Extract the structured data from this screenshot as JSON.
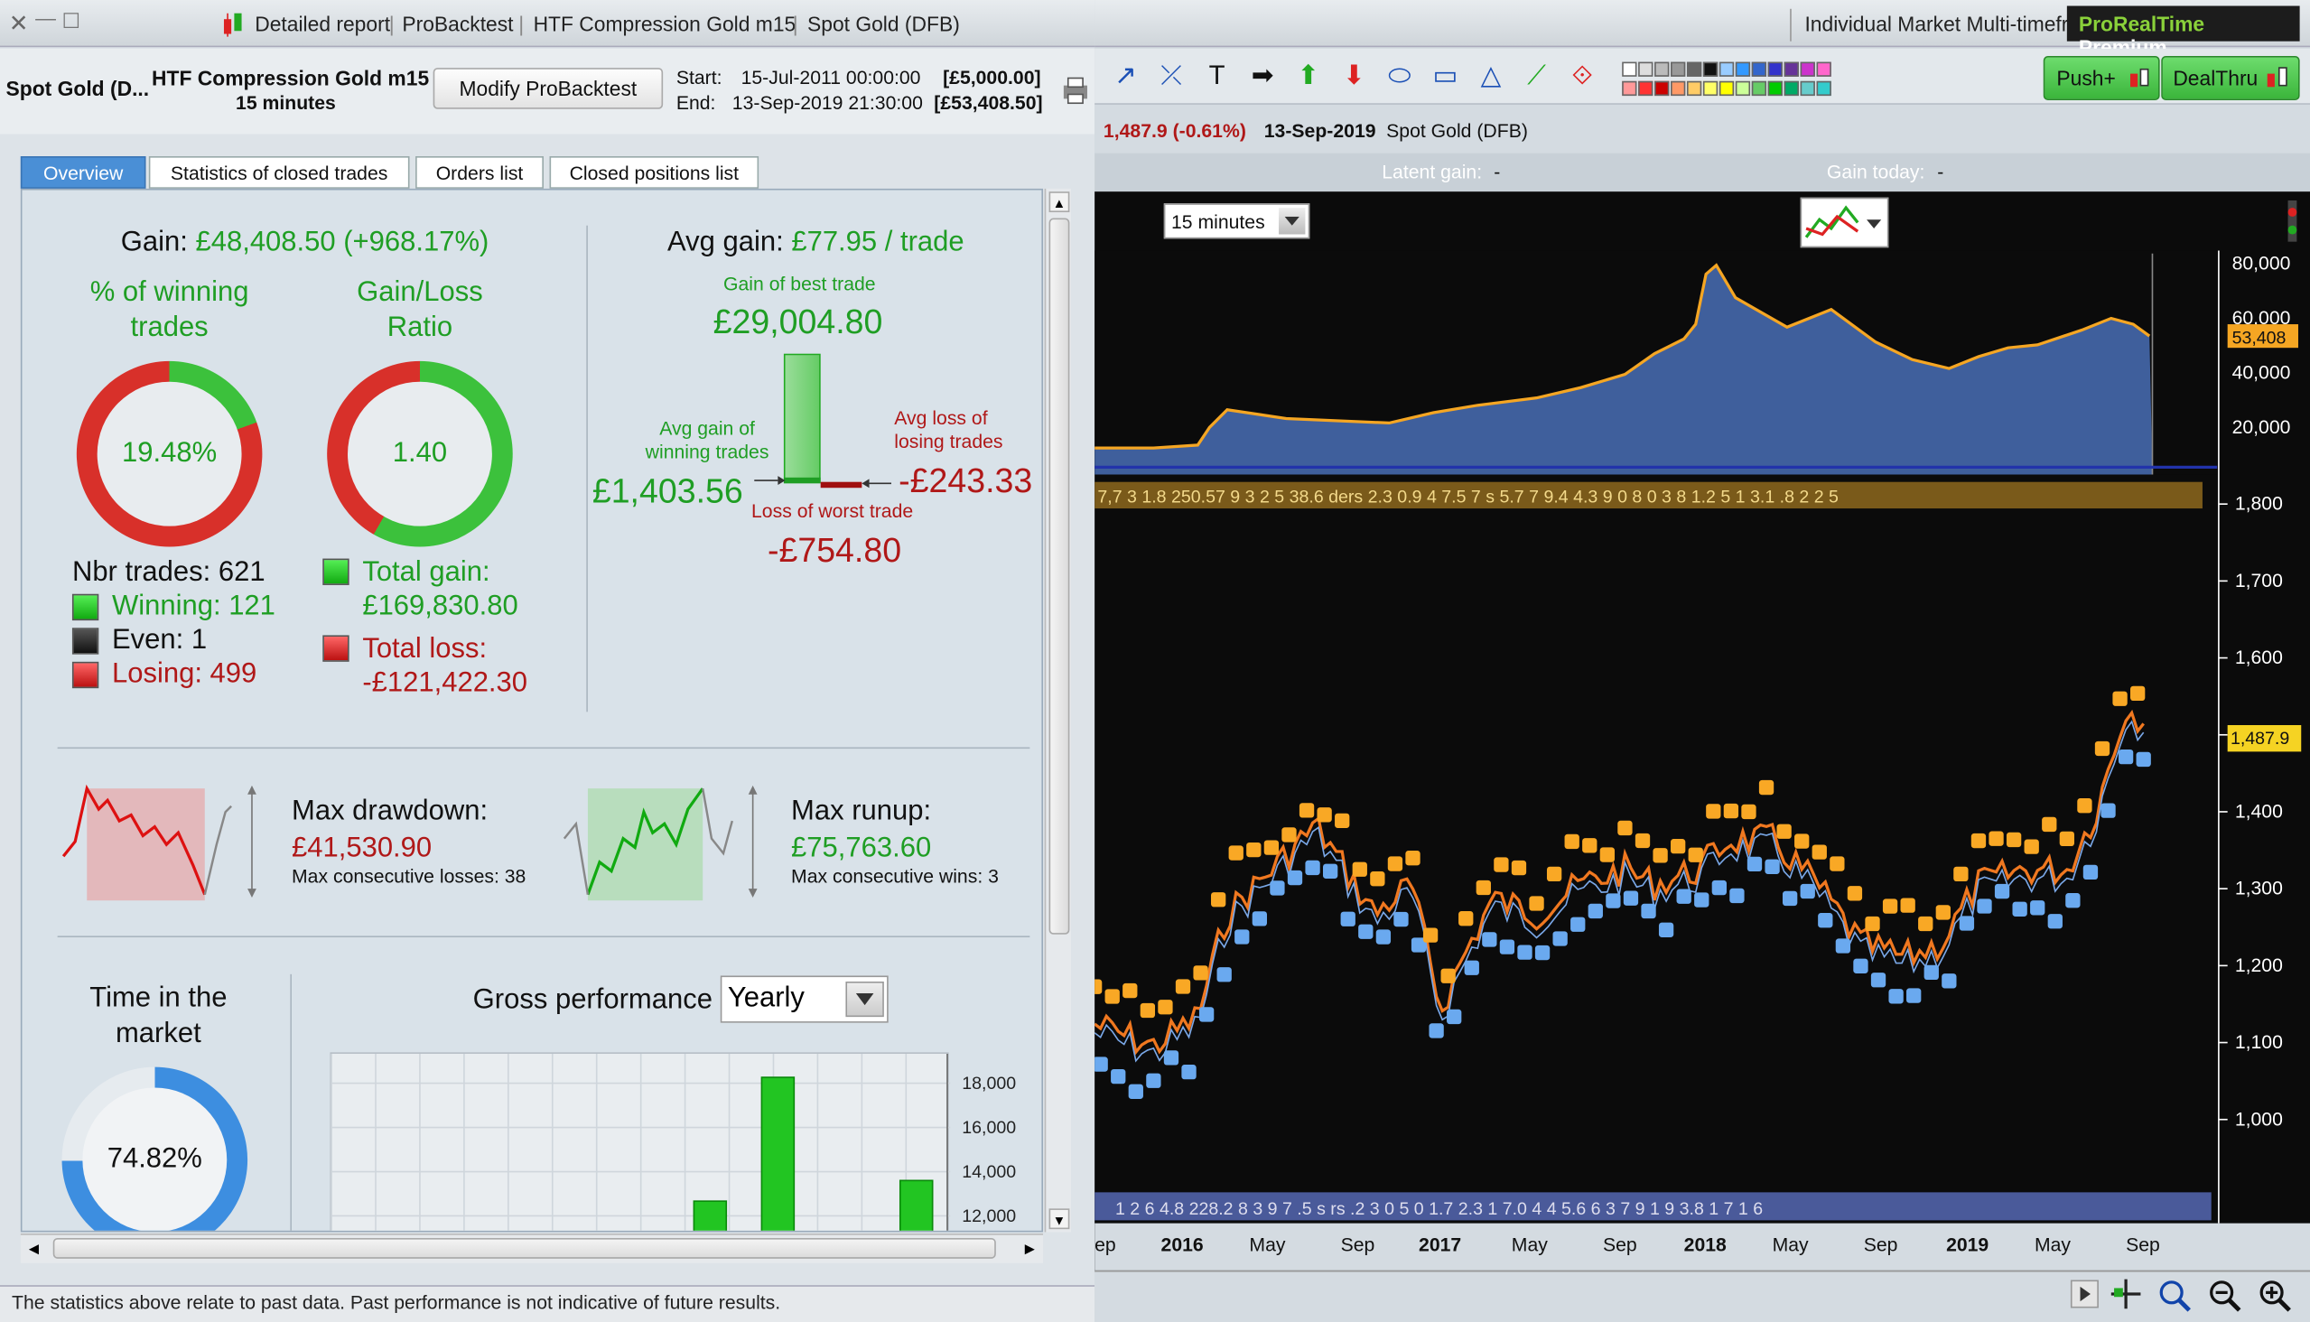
{
  "left_title": {
    "close": "✕",
    "minimize": "—",
    "maximize": "☐",
    "detailed": "Detailed report",
    "probacktest": "ProBacktest",
    "system": "HTF Compression Gold m15",
    "market": "Spot Gold (DFB)"
  },
  "header": {
    "instrument": "Spot Gold (D...",
    "system_name": "HTF Compression Gold m15",
    "timeframe": "15 minutes",
    "modify_button": "Modify ProBacktest",
    "start_label": "Start:",
    "start_value": "15-Jul-2011 00:00:00",
    "start_capital": "[£5,000.00]",
    "end_label": "End:",
    "end_value": "13-Sep-2019 21:30:00",
    "end_capital": "[£53,408.50]"
  },
  "tabs": [
    "Overview",
    "Statistics of closed trades",
    "Orders list",
    "Closed positions list"
  ],
  "overview": {
    "gain_label": "Gain:",
    "gain_value": "£48,408.50 (+968.17%)",
    "winning_pct_title": "% of winning trades",
    "winning_pct": "19.48%",
    "winning_fraction": 0.1948,
    "ratio_title": "Gain/Loss Ratio",
    "ratio": "1.40",
    "ratio_fraction": 0.583,
    "nbr_trades": "Nbr trades: 621",
    "winning": "Winning: 121",
    "even": "Even: 1",
    "losing": "Losing: 499",
    "total_gain_label": "Total gain:",
    "total_gain": "£169,830.80",
    "total_loss_label": "Total loss:",
    "total_loss": "-£121,422.30",
    "avg_gain_label": "Avg gain:",
    "avg_gain": "£77.95 / trade",
    "best_trade_label": "Gain of best trade",
    "best_trade": "£29,004.80",
    "avg_win_label": "Avg gain of winning trades",
    "avg_win": "£1,403.56",
    "avg_loss_label": "Avg loss of losing trades",
    "avg_loss": "-£243.33",
    "worst_trade_label": "Loss of worst trade",
    "worst_trade": "-£754.80",
    "max_dd_label": "Max drawdown:",
    "max_dd": "£41,530.90",
    "max_consec_losses": "Max consecutive losses: 38",
    "max_ru_label": "Max runup:",
    "max_ru": "£75,763.60",
    "max_consec_wins": "Max consecutive wins: 3",
    "time_in_market_title": "Time in the market",
    "time_in_market": "74.82%",
    "time_fraction": 0.7482,
    "gross_perf_label": "Gross performance",
    "gross_perf_select": "Yearly",
    "gross_ticks": [
      "18,000",
      "16,000",
      "14,000",
      "12,000"
    ]
  },
  "footer": "The statistics above relate to past data. Past performance is not indicative of future results.",
  "right_title": {
    "tab": "Individual Market Multi-timefr",
    "brand_a": "ProRealTime",
    "brand_b": "Premium"
  },
  "toolbar": {
    "push_button": "Push+",
    "dealthru_button": "DealThru"
  },
  "info": {
    "change": "1,487.9 (-0.61%)",
    "date": "13-Sep-2019",
    "market": "Spot Gold (DFB)"
  },
  "latent": {
    "latent_label": "Latent gain:",
    "latent_value": "-",
    "today_label": "Gain today:",
    "today_value": "-"
  },
  "chart": {
    "timeframe_select": "15 minutes",
    "equity_ticks": [
      "80,000",
      "60,000",
      "40,000",
      "20,000"
    ],
    "equity_last": "53,408",
    "price_ticks": [
      "1,800",
      "1,700",
      "1,600",
      "1,500",
      "1,400",
      "1,300",
      "1,200",
      "1,100",
      "1,000"
    ],
    "price_last": "1,487.9",
    "x_labels": [
      {
        "t": "ep",
        "b": false
      },
      {
        "t": "2016",
        "b": true
      },
      {
        "t": "May",
        "b": false
      },
      {
        "t": "Sep",
        "b": false
      },
      {
        "t": "2017",
        "b": true
      },
      {
        "t": "May",
        "b": false
      },
      {
        "t": "Sep",
        "b": false
      },
      {
        "t": "2018",
        "b": true
      },
      {
        "t": "May",
        "b": false
      },
      {
        "t": "Sep",
        "b": false
      },
      {
        "t": "2019",
        "b": true
      },
      {
        "t": "May",
        "b": false
      },
      {
        "t": "Sep",
        "b": false
      }
    ],
    "band_text_top": "7,7 3 1.8 250.57 9 3 2 5 38.6 ders 2.3 0.9 4 7.5 7 s 5.7 7 9.4 4.3 9 0 8 0 3 8 1.2 5 1 3.1 .8 2 2 5",
    "band_text_bottom": "1 2 6 4.8 228.2 8 3 9 7 .5 s rs .2 3 0 5 0 1.7 2.3 1 7.0 4 4 5.6 6 3 7 9 1 9 3.8 1 7 1 6"
  },
  "colors": {
    "green": "#1f9e24",
    "red": "#b01818",
    "accent": "#4a8fd6",
    "chart_bg": "#0b0b0b",
    "equity_fill": "#3f5f9c",
    "orange": "#f5a623",
    "blue": "#5ba3e8"
  }
}
